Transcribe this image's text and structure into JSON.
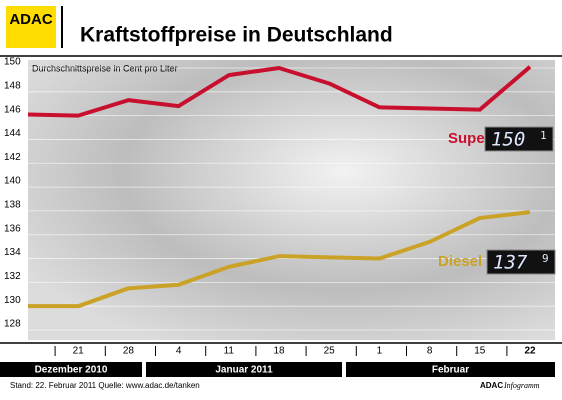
{
  "brand": "ADAC",
  "footer": {
    "source": "Stand:  22. Februar 2011   Quelle: www.adac.de/tanken",
    "brand": "ADAC",
    "product": "Infogramm"
  },
  "chart_data": {
    "type": "line",
    "title": "Kraftstoffpreise in Deutschland",
    "y_label": "Durchschnittspreise in Cent pro Liter",
    "categories": [
      null,
      "21",
      "28",
      "4",
      "11",
      "18",
      "25",
      "1",
      "8",
      "15",
      "22"
    ],
    "groups": [
      "Dezember 2010",
      "Januar 2011",
      "Februar"
    ],
    "series": [
      {
        "name": "Super",
        "color": "#c8102e",
        "values": [
          146.1,
          146.0,
          147.3,
          146.8,
          149.4,
          150.0,
          148.7,
          146.7,
          146.6,
          146.5,
          150.1
        ],
        "display": {
          "main": "150",
          "decimal": "1"
        }
      },
      {
        "name": "Diesel",
        "color": "#c9a227",
        "values": [
          130.0,
          130.0,
          131.5,
          131.8,
          133.3,
          134.2,
          134.1,
          134.0,
          135.4,
          137.4,
          137.9
        ],
        "display": {
          "main": "137",
          "decimal": "9"
        }
      }
    ],
    "ylim": [
      128,
      150
    ],
    "yticks": [
      128,
      130,
      132,
      134,
      136,
      138,
      140,
      142,
      144,
      146,
      148,
      150
    ],
    "grid": true
  }
}
